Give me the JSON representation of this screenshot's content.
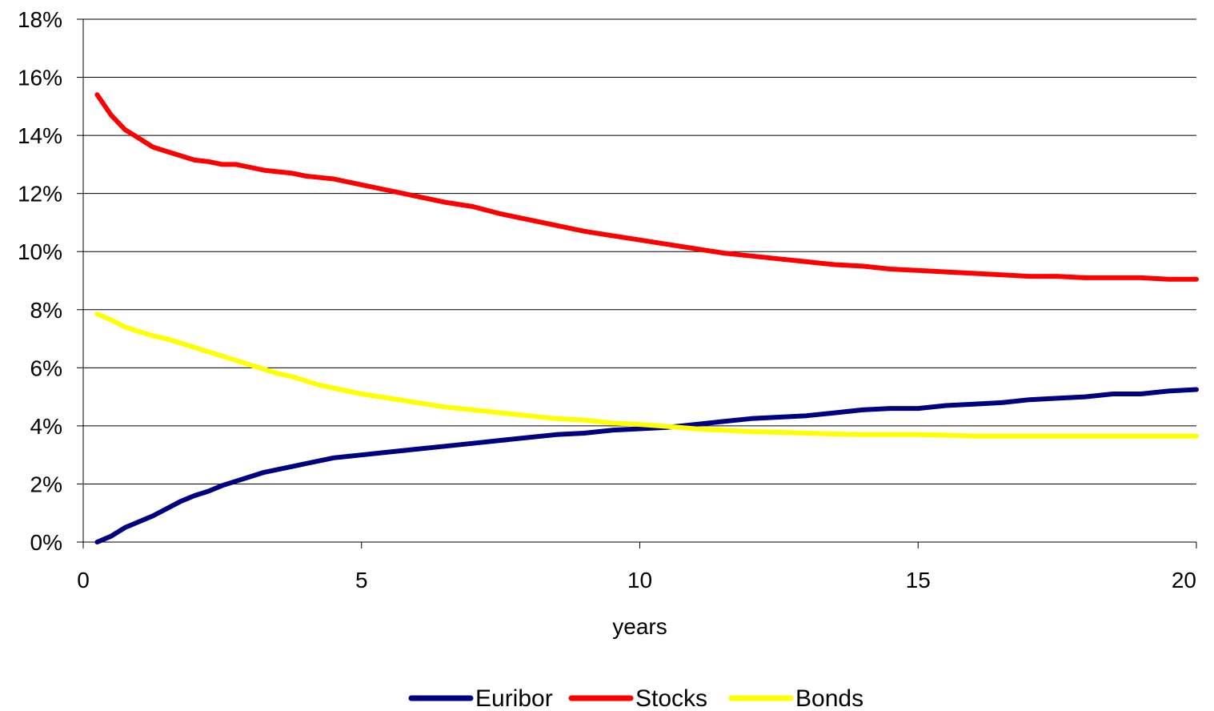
{
  "chart_data": {
    "type": "line",
    "title": "",
    "xlabel": "years",
    "ylabel": "",
    "xlim": [
      0,
      20
    ],
    "ylim": [
      0,
      0.18
    ],
    "x_ticks": [
      0,
      5,
      10,
      15,
      20
    ],
    "x_tick_labels": [
      "0",
      "5",
      "10",
      "15",
      "20"
    ],
    "y_ticks": [
      0,
      0.02,
      0.04,
      0.06,
      0.08,
      0.1,
      0.12,
      0.14,
      0.16,
      0.18
    ],
    "y_tick_labels": [
      "0%",
      "2%",
      "4%",
      "6%",
      "8%",
      "10%",
      "12%",
      "14%",
      "16%",
      "18%"
    ],
    "grid": "horizontal",
    "legend_position": "bottom",
    "series": [
      {
        "name": "Euribor",
        "color": "#000080",
        "points": [
          [
            0.25,
            0.0
          ],
          [
            0.5,
            0.002
          ],
          [
            0.75,
            0.005
          ],
          [
            1.0,
            0.007
          ],
          [
            1.25,
            0.009
          ],
          [
            1.5,
            0.0115
          ],
          [
            1.75,
            0.014
          ],
          [
            2.0,
            0.016
          ],
          [
            2.25,
            0.0175
          ],
          [
            2.5,
            0.0195
          ],
          [
            2.75,
            0.021
          ],
          [
            3.0,
            0.0225
          ],
          [
            3.25,
            0.024
          ],
          [
            3.5,
            0.025
          ],
          [
            3.75,
            0.026
          ],
          [
            4.0,
            0.027
          ],
          [
            4.25,
            0.028
          ],
          [
            4.5,
            0.029
          ],
          [
            4.75,
            0.0295
          ],
          [
            5.0,
            0.03
          ],
          [
            5.5,
            0.031
          ],
          [
            6.0,
            0.032
          ],
          [
            6.5,
            0.033
          ],
          [
            7.0,
            0.034
          ],
          [
            7.5,
            0.035
          ],
          [
            8.0,
            0.036
          ],
          [
            8.5,
            0.037
          ],
          [
            9.0,
            0.0375
          ],
          [
            9.5,
            0.0385
          ],
          [
            10.0,
            0.039
          ],
          [
            10.5,
            0.0395
          ],
          [
            11.0,
            0.0405
          ],
          [
            11.5,
            0.0415
          ],
          [
            12.0,
            0.0425
          ],
          [
            12.5,
            0.043
          ],
          [
            13.0,
            0.0435
          ],
          [
            13.5,
            0.0445
          ],
          [
            14.0,
            0.0455
          ],
          [
            14.5,
            0.046
          ],
          [
            15.0,
            0.046
          ],
          [
            15.5,
            0.047
          ],
          [
            16.0,
            0.0475
          ],
          [
            16.5,
            0.048
          ],
          [
            17.0,
            0.049
          ],
          [
            17.5,
            0.0495
          ],
          [
            18.0,
            0.05
          ],
          [
            18.5,
            0.051
          ],
          [
            19.0,
            0.051
          ],
          [
            19.5,
            0.052
          ],
          [
            20.0,
            0.0525
          ]
        ]
      },
      {
        "name": "Stocks",
        "color": "#ff0000",
        "points": [
          [
            0.25,
            0.154
          ],
          [
            0.5,
            0.147
          ],
          [
            0.75,
            0.142
          ],
          [
            1.0,
            0.139
          ],
          [
            1.25,
            0.136
          ],
          [
            1.5,
            0.1345
          ],
          [
            1.75,
            0.133
          ],
          [
            2.0,
            0.1315
          ],
          [
            2.25,
            0.131
          ],
          [
            2.5,
            0.13
          ],
          [
            2.75,
            0.13
          ],
          [
            3.0,
            0.129
          ],
          [
            3.25,
            0.128
          ],
          [
            3.5,
            0.1275
          ],
          [
            3.75,
            0.127
          ],
          [
            4.0,
            0.126
          ],
          [
            4.25,
            0.1255
          ],
          [
            4.5,
            0.125
          ],
          [
            4.75,
            0.124
          ],
          [
            5.0,
            0.123
          ],
          [
            5.5,
            0.121
          ],
          [
            6.0,
            0.119
          ],
          [
            6.5,
            0.117
          ],
          [
            7.0,
            0.1155
          ],
          [
            7.5,
            0.113
          ],
          [
            8.0,
            0.111
          ],
          [
            8.5,
            0.109
          ],
          [
            9.0,
            0.107
          ],
          [
            9.5,
            0.1055
          ],
          [
            10.0,
            0.104
          ],
          [
            10.5,
            0.1025
          ],
          [
            11.0,
            0.101
          ],
          [
            11.5,
            0.0995
          ],
          [
            12.0,
            0.0985
          ],
          [
            12.5,
            0.0975
          ],
          [
            13.0,
            0.0965
          ],
          [
            13.5,
            0.0955
          ],
          [
            14.0,
            0.095
          ],
          [
            14.5,
            0.094
          ],
          [
            15.0,
            0.0935
          ],
          [
            15.5,
            0.093
          ],
          [
            16.0,
            0.0925
          ],
          [
            16.5,
            0.092
          ],
          [
            17.0,
            0.0915
          ],
          [
            17.5,
            0.0915
          ],
          [
            18.0,
            0.091
          ],
          [
            18.5,
            0.091
          ],
          [
            19.0,
            0.091
          ],
          [
            19.5,
            0.0905
          ],
          [
            20.0,
            0.0905
          ]
        ]
      },
      {
        "name": "Bonds",
        "color": "#ffff00",
        "points": [
          [
            0.25,
            0.0785
          ],
          [
            0.5,
            0.0765
          ],
          [
            0.75,
            0.074
          ],
          [
            1.0,
            0.0725
          ],
          [
            1.25,
            0.071
          ],
          [
            1.5,
            0.07
          ],
          [
            1.75,
            0.0685
          ],
          [
            2.0,
            0.067
          ],
          [
            2.25,
            0.0655
          ],
          [
            2.5,
            0.064
          ],
          [
            2.75,
            0.0625
          ],
          [
            3.0,
            0.061
          ],
          [
            3.25,
            0.0595
          ],
          [
            3.5,
            0.058
          ],
          [
            3.75,
            0.057
          ],
          [
            4.0,
            0.0555
          ],
          [
            4.25,
            0.054
          ],
          [
            4.5,
            0.053
          ],
          [
            4.75,
            0.052
          ],
          [
            5.0,
            0.051
          ],
          [
            5.5,
            0.0495
          ],
          [
            6.0,
            0.048
          ],
          [
            6.5,
            0.0465
          ],
          [
            7.0,
            0.0455
          ],
          [
            7.5,
            0.0445
          ],
          [
            8.0,
            0.0435
          ],
          [
            8.5,
            0.0425
          ],
          [
            9.0,
            0.042
          ],
          [
            9.5,
            0.041
          ],
          [
            10.0,
            0.0405
          ],
          [
            10.5,
            0.0398
          ],
          [
            11.0,
            0.039
          ],
          [
            11.5,
            0.0385
          ],
          [
            12.0,
            0.038
          ],
          [
            12.5,
            0.0378
          ],
          [
            13.0,
            0.0375
          ],
          [
            13.5,
            0.0372
          ],
          [
            14.0,
            0.037
          ],
          [
            14.5,
            0.037
          ],
          [
            15.0,
            0.037
          ],
          [
            15.5,
            0.0368
          ],
          [
            16.0,
            0.0365
          ],
          [
            16.5,
            0.0365
          ],
          [
            17.0,
            0.0365
          ],
          [
            17.5,
            0.0365
          ],
          [
            18.0,
            0.0365
          ],
          [
            18.5,
            0.0365
          ],
          [
            19.0,
            0.0365
          ],
          [
            19.5,
            0.0365
          ],
          [
            20.0,
            0.0365
          ]
        ]
      }
    ]
  }
}
